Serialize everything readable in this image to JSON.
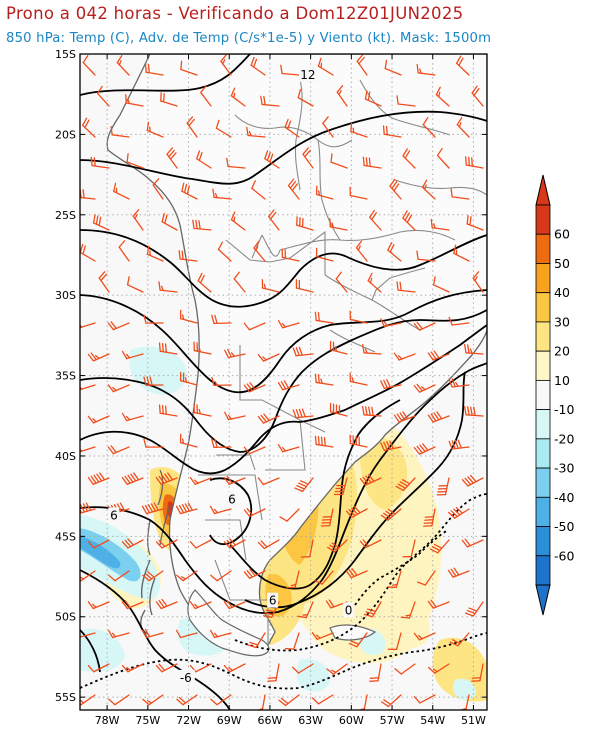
{
  "header": {
    "title": "Prono a 042 horas - Verificando a Dom12Z01JUN2025",
    "subtitle": "850 hPa: Temp (C), Adv. de Temp (C/s*1e-5) y Viento (kt). Mask: 1500m"
  },
  "map": {
    "lon_range": [
      -80,
      -50
    ],
    "lat_range": [
      -55.8,
      -15
    ],
    "lon_ticks": [
      "78W",
      "75W",
      "72W",
      "69W",
      "66W",
      "63W",
      "60W",
      "57W",
      "54W",
      "51W"
    ],
    "lat_ticks": [
      "15S",
      "20S",
      "25S",
      "30S",
      "35S",
      "40S",
      "45S",
      "50S",
      "55S"
    ],
    "contour_labels": [
      {
        "text": "12",
        "lon": -63.2,
        "lat": -16.3
      },
      {
        "text": "6",
        "lon": -77.5,
        "lat": -43.7
      },
      {
        "text": "6",
        "lon": -68.8,
        "lat": -42.7
      },
      {
        "text": "6",
        "lon": -65.8,
        "lat": -49.0
      },
      {
        "text": "0",
        "lon": -60.2,
        "lat": -49.6
      },
      {
        "text": "-6",
        "lon": -72.2,
        "lat": -53.8
      }
    ]
  },
  "colorbar": {
    "labels": [
      "60",
      "50",
      "40",
      "30",
      "20",
      "10",
      "-10",
      "-20",
      "-30",
      "-40",
      "-50",
      "-60"
    ],
    "colors": [
      "#d8381a",
      "#ee6b10",
      "#f8a11c",
      "#fbc642",
      "#fde583",
      "#fef8c9",
      "#f8f8f8",
      "#d7f7f7",
      "#aaeaf3",
      "#7cd0ef",
      "#4db0e6",
      "#2a8fd8",
      "#1e73cc"
    ]
  },
  "colors": {
    "title": "#b81f1f",
    "subtitle": "#1b86c4",
    "wind_barb": "#f04d1c",
    "topo_mask": "#c4c4c4",
    "borders": "#888888",
    "contour": "#000000"
  }
}
